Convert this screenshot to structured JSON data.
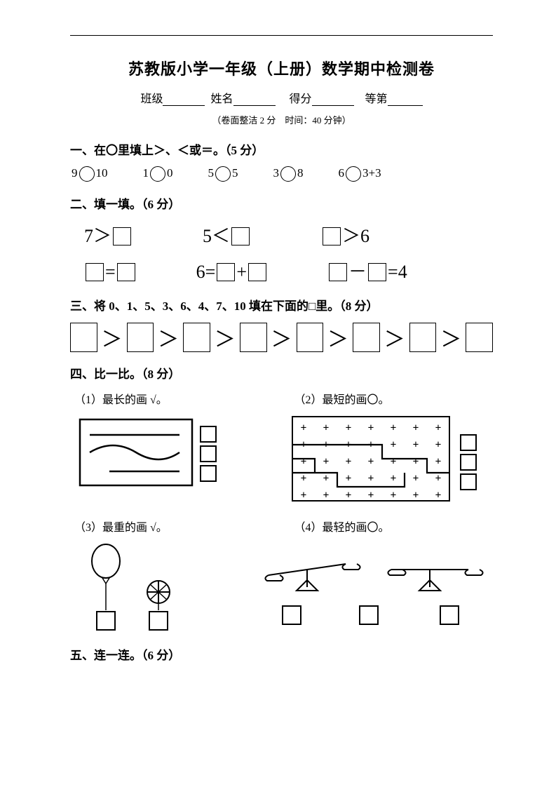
{
  "title": "苏教版小学一年级（上册）数学期中检测卷",
  "info": {
    "class": "班级",
    "name": "姓名",
    "score": "得分",
    "grade": "等第"
  },
  "sub_info": "（卷面整洁 2 分　时间：40 分钟）",
  "sec1": {
    "heading": "一、在〇里填上＞、＜或＝。（5 分）",
    "items": [
      {
        "l": "9",
        "r": "10"
      },
      {
        "l": "1",
        "r": "0"
      },
      {
        "l": "5",
        "r": "5"
      },
      {
        "l": "3",
        "r": "8"
      },
      {
        "l": "6",
        "r": "3+3"
      }
    ]
  },
  "sec2": {
    "heading": "二、填一填。（6 分）",
    "r1a_l": "7＞",
    "r1b_l": "5＜",
    "r1c_r": "＞6",
    "r2a_mid": "=",
    "r2b_l": "6=",
    "r2b_mid": "+",
    "r2c_mid": "－",
    "r2c_r": "=4"
  },
  "sec3": {
    "heading": "三、将 0、1、5、3、6、4、7、10 填在下面的□里。（8 分）",
    "gt": "＞"
  },
  "sec4": {
    "heading": "四、比一比。（8 分）",
    "q1": "（1）最长的画 √。",
    "q2": "（2）最短的画〇。",
    "q3": "（3）最重的画 √。",
    "q4": "（4）最轻的画〇。",
    "fig1": {
      "box_stroke": "#000000",
      "line_stroke": "#000000"
    },
    "fig2": {
      "grid_stroke": "#000000",
      "plus_color": "#000000"
    },
    "fig3": {
      "stroke": "#000000"
    },
    "fig4": {
      "stroke": "#000000"
    }
  },
  "sec5": {
    "heading": "五、连一连。（6 分）"
  },
  "colors": {
    "text": "#000000",
    "bg": "#ffffff"
  }
}
